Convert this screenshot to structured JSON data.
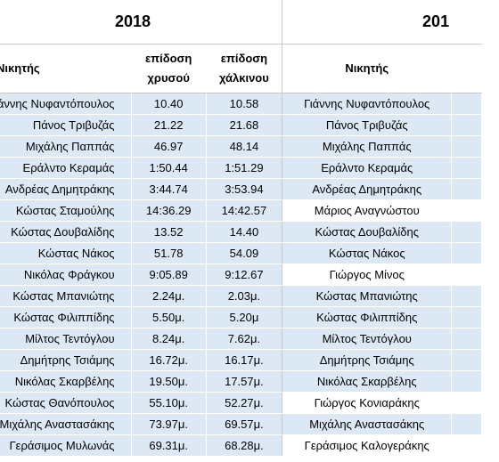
{
  "years": {
    "left": "2018",
    "right": "201"
  },
  "headers": {
    "winner": "Νικητής",
    "gold_line1": "επίδοση",
    "gold_line2": "χρυσού",
    "bronze_line1": "επίδοση",
    "bronze_line2": "χάλκινου",
    "winner_right": "Νικητής"
  },
  "rows": [
    {
      "winner_left": "Γιάννης Νυφαντόπουλος",
      "gold": "10.40",
      "bronze": "10.58",
      "winner_right": "Γιάννης Νυφαντόπουλος",
      "right_blue": true
    },
    {
      "winner_left": "Πάνος Τριβυζάς",
      "gold": "21.22",
      "bronze": "21.68",
      "winner_right": "Πάνος Τριβυζάς",
      "right_blue": true
    },
    {
      "winner_left": "Μιχάλης Παππάς",
      "gold": "46.97",
      "bronze": "48.14",
      "winner_right": "Μιχάλης Παππάς",
      "right_blue": true
    },
    {
      "winner_left": "Εράλντο Κεραμάς",
      "gold": "1:50.44",
      "bronze": "1:51.29",
      "winner_right": "Εράλντο Κεραμάς",
      "right_blue": true
    },
    {
      "winner_left": "Ανδρέας Δημητράκης",
      "gold": "3:44.74",
      "bronze": "3:53.94",
      "winner_right": "Ανδρέας Δημητράκης",
      "right_blue": true
    },
    {
      "winner_left": "Κώστας Σταμούλης",
      "gold": "14:36.29",
      "bronze": "14:42.57",
      "winner_right": "Μάριος Αναγνώστου",
      "right_blue": false
    },
    {
      "winner_left": "Κώστας Δουβαλίδης",
      "gold": "13.52",
      "bronze": "14.40",
      "winner_right": "Κώστας Δουβαλίδης",
      "right_blue": true
    },
    {
      "winner_left": "Κώστας Νάκος",
      "gold": "51.78",
      "bronze": "54.09",
      "winner_right": "Κώστας Νάκος",
      "right_blue": true
    },
    {
      "winner_left": "Νικόλας Φράγκου",
      "gold": "9:05.89",
      "bronze": "9:12.67",
      "winner_right": "Γιώργος Μίνος",
      "right_blue": false
    },
    {
      "winner_left": "Κώστας Μπανιώτης",
      "gold": "2.24μ.",
      "bronze": "2.03μ.",
      "winner_right": "Κώστας Μπανιώτης",
      "right_blue": true
    },
    {
      "winner_left": "Κώστας Φιλιππίδης",
      "gold": "5.50μ.",
      "bronze": "5.20μ",
      "winner_right": "Κώστας Φιλιππίδης",
      "right_blue": true
    },
    {
      "winner_left": "Μίλτος Τεντόγλου",
      "gold": "8.24μ.",
      "bronze": "7.62μ.",
      "winner_right": "Μίλτος Τεντόγλου",
      "right_blue": true
    },
    {
      "winner_left": "Δημήτρης Τσιάμης",
      "gold": "16.72μ.",
      "bronze": "16.17μ.",
      "winner_right": "Δημήτρης Τσιάμης",
      "right_blue": true
    },
    {
      "winner_left": "Νικόλας Σκαρβέλης",
      "gold": "19.50μ.",
      "bronze": "17.57μ.",
      "winner_right": "Νικόλας Σκαρβέλης",
      "right_blue": true
    },
    {
      "winner_left": "Κώστας Θανόπουλος",
      "gold": "55.10μ.",
      "bronze": "52.27μ.",
      "winner_right": "Γιώργος Κονιαράκης",
      "right_blue": false
    },
    {
      "winner_left": "Μιχάλης Αναστασάκης",
      "gold": "73.97μ.",
      "bronze": "69.57μ.",
      "winner_right": "Μιχάλης Αναστασάκης",
      "right_blue": true
    },
    {
      "winner_left": "Γεράσιμος Μυλωνάς",
      "gold": "69.31μ.",
      "bronze": "68.28μ.",
      "winner_right": "Γεράσιμος Καλογεράκης",
      "right_blue": false
    }
  ],
  "colors": {
    "row_highlight": "#dde8f5",
    "grid": "#c9c9c9"
  }
}
